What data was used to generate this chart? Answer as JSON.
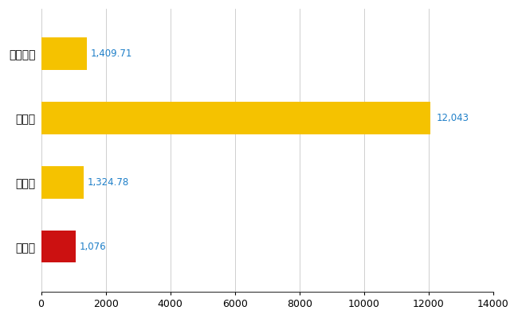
{
  "categories": [
    "全国平均",
    "県最大",
    "県平均",
    "和光市"
  ],
  "values": [
    1409.71,
    12043,
    1324.78,
    1076
  ],
  "colors": [
    "#F5C200",
    "#F5C200",
    "#F5C200",
    "#CC1111"
  ],
  "labels": [
    "1,409.71",
    "12,043",
    "1,324.78",
    "1,076"
  ],
  "xlim": [
    0,
    14000
  ],
  "xticks": [
    0,
    2000,
    4000,
    6000,
    8000,
    10000,
    12000,
    14000
  ],
  "xtick_labels": [
    "0",
    "2000",
    "4000",
    "6000",
    "8000",
    "10000",
    "12000",
    "14000"
  ],
  "background_color": "#ffffff",
  "grid_color": "#c8c8c8",
  "label_color": "#1E7FC8",
  "label_fontsize": 8.5,
  "tick_fontsize": 9,
  "ytick_fontsize": 10,
  "bar_height": 0.5
}
